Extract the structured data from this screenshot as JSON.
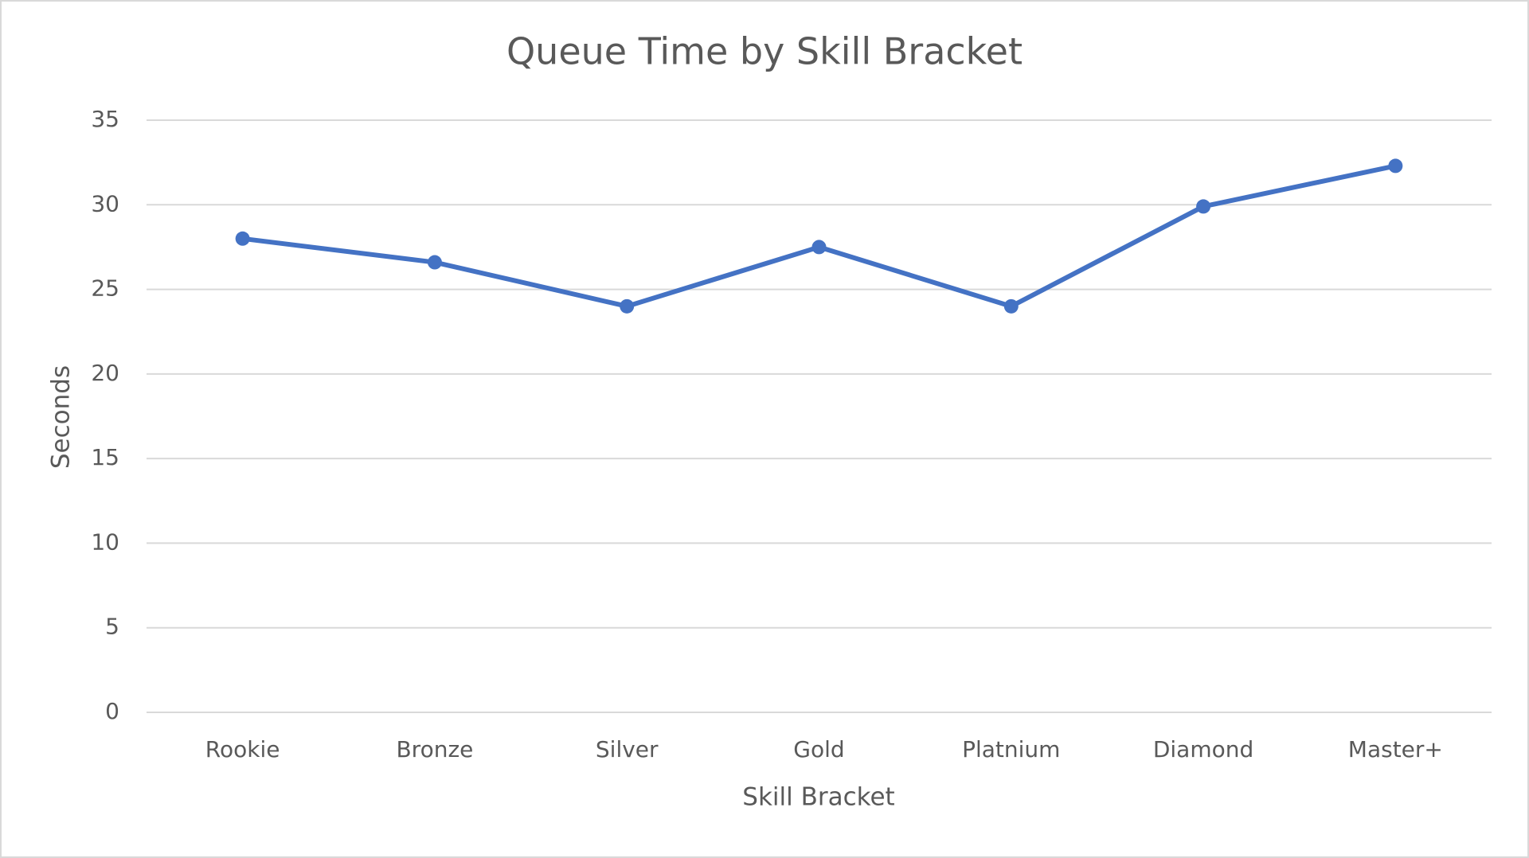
{
  "chart_data": {
    "type": "line",
    "title": "Queue Time by Skill Bracket",
    "x_label": "Skill Bracket",
    "y_label": "Seconds",
    "categories": [
      "Rookie",
      "Bronze",
      "Silver",
      "Gold",
      "Platnium",
      "Diamond",
      "Master+"
    ],
    "series": [
      {
        "name": "Queue Time",
        "color": "#4472c4",
        "values": [
          28.0,
          26.6,
          24.0,
          27.5,
          24.0,
          29.9,
          32.3
        ]
      }
    ],
    "ylim": [
      0,
      35
    ],
    "yticks": [
      0,
      5,
      10,
      15,
      20,
      25,
      30,
      35
    ],
    "grid": true,
    "legend": false
  }
}
